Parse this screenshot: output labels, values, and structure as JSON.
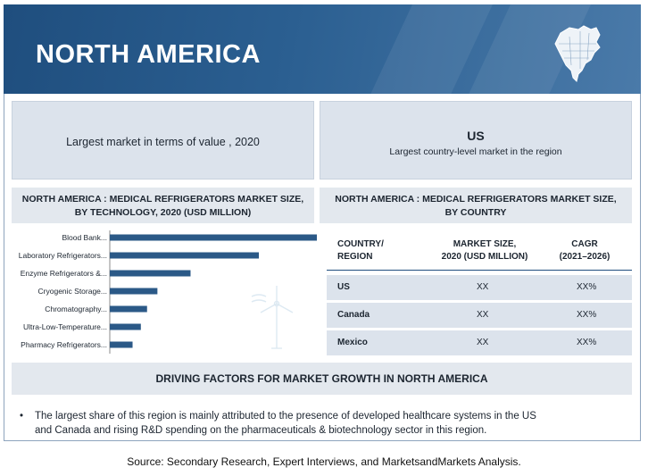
{
  "banner": {
    "title": "NORTH AMERICA"
  },
  "highlights": {
    "left": {
      "text": "Largest market in terms of value , 2020"
    },
    "right": {
      "title": "US",
      "subtitle": "Largest country-level   market  in the region"
    }
  },
  "chart_panel": {
    "title_line1": "NORTH AMERICA : MEDICAL REFRIGERATORS MARKET SIZE,",
    "title_line2": "BY TECHNOLOGY, 2020 (USD MILLION)"
  },
  "table_panel": {
    "title_line1": "NORTH AMERICA : MEDICAL REFRIGERATORS MARKET SIZE,",
    "title_line2": "BY COUNTRY",
    "headers": [
      [
        "COUNTRY/",
        "REGION"
      ],
      [
        "MARKET SIZE,",
        "2020 (USD MILLION)"
      ],
      [
        "CAGR",
        "(2021–2026)"
      ]
    ],
    "rows": [
      {
        "country": "US",
        "size": "XX",
        "cagr": "XX%"
      },
      {
        "country": "Canada",
        "size": "XX",
        "cagr": "XX%"
      },
      {
        "country": "Mexico",
        "size": "XX",
        "cagr": "XX%"
      }
    ]
  },
  "chart_data": {
    "type": "bar",
    "orientation": "horizontal",
    "categories": [
      "Blood Bank...",
      "Laboratory Refrigerators...",
      "Enzyme Refrigerators &...",
      "Cryogenic Storage...",
      "Chromatography...",
      "Ultra-Low-Temperature...",
      "Pharmacy Refrigerators..."
    ],
    "values": [
      100,
      72,
      39,
      23,
      18,
      15,
      11
    ],
    "title": "",
    "xlabel": "",
    "ylabel": "",
    "xlim": [
      0,
      100
    ],
    "grid": false,
    "bar_color": "#2b5987"
  },
  "drivers": {
    "title": "DRIVING FACTORS FOR MARKET GROWTH IN NORTH AMERICA",
    "bullet": "•",
    "line1": "The largest share of this region is mainly attributed to the presence of developed healthcare systems in the US",
    "line2": "and Canada and rising R&D spending  on the pharmaceuticals  & biotechnology  sector in this region."
  },
  "source": "Source: Secondary Research, Expert Interviews, and MarketsandMarkets Analysis."
}
